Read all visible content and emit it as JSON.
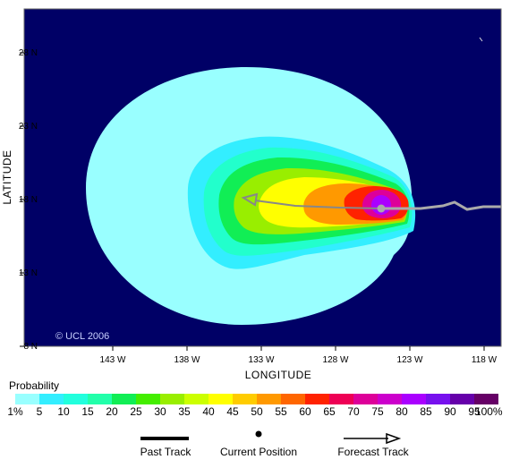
{
  "map": {
    "ocean_color": "#000066",
    "copyright": "© UCL 2006",
    "x_title": "LONGITUDE",
    "y_title": "LATITUDE",
    "x_ticks": [
      "143 W",
      "138 W",
      "133 W",
      "128 W",
      "123 W",
      "118 W"
    ],
    "y_ticks": [
      "28 N",
      "23 N",
      "18 N",
      "13 N",
      "8 N"
    ],
    "lon_values": [
      -143,
      -138,
      -133,
      -128,
      -123,
      -118
    ],
    "lat_values": [
      28,
      23,
      18,
      13,
      8
    ]
  },
  "probability": {
    "title": "Probability",
    "labels": [
      "1%",
      "5",
      "10",
      "15",
      "20",
      "25",
      "30",
      "35",
      "40",
      "45",
      "50",
      "55",
      "60",
      "65",
      "70",
      "75",
      "80",
      "85",
      "90",
      "95",
      "100%"
    ],
    "colors": [
      "#99ffff",
      "#33eeff",
      "#22ffdd",
      "#22ffaa",
      "#11ee55",
      "#44ee00",
      "#99ee00",
      "#ccff00",
      "#ffff00",
      "#ffcc00",
      "#ff9900",
      "#ff6600",
      "#ff2200",
      "#ee0055",
      "#dd0099",
      "#cc00cc",
      "#aa00ff",
      "#7711ee",
      "#6600aa",
      "#660066"
    ]
  },
  "legend": {
    "past_track": "Past Track",
    "current_position": "Current Position",
    "forecast_track": "Forecast Track"
  },
  "colors": {
    "track": "#aaaaaa",
    "current_position": "#aaaaaa"
  }
}
